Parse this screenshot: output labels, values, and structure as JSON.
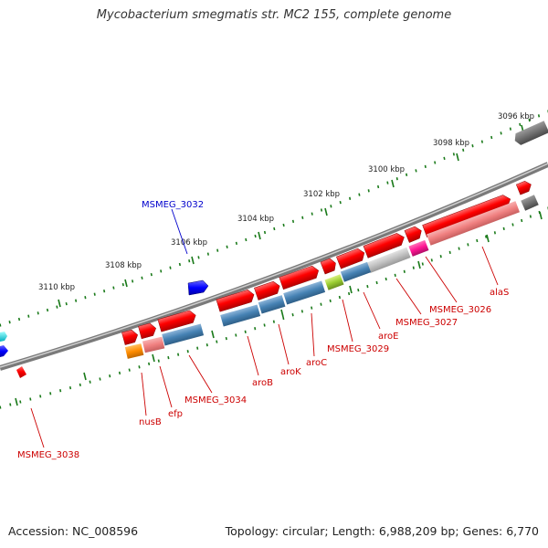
{
  "title": "Mycobacterium smegmatis str. MC2 155, complete genome",
  "footer": {
    "accession": "Accession: NC_008596",
    "summary": "Topology: circular; Length: 6,988,209 bp; Genes: 6,770"
  },
  "scale_labels": [
    "3096 kbp",
    "3098 kbp",
    "3100 kbp",
    "3102 kbp",
    "3104 kbp",
    "3106 kbp",
    "3108 kbp",
    "3110 kbp"
  ],
  "gene_labels": {
    "MSMEG_3032": "MSMEG_3032",
    "alaS": "alaS",
    "MSMEG_3026": "MSMEG_3026",
    "MSMEG_3027": "MSMEG_3027",
    "aroE": "aroE",
    "MSMEG_3029": "MSMEG_3029",
    "aroC": "aroC",
    "aroK": "aroK",
    "aroB": "aroB",
    "MSMEG_3034": "MSMEG_3034",
    "efp": "efp",
    "nusB": "nusB",
    "MSMEG_3038": "MSMEG_3038"
  },
  "colors": {
    "plus_strand": "#ff0000",
    "minus_strand": "#4682b4",
    "pink": "#f08080",
    "gray": "#c0c0c0",
    "magenta": "#ff1493",
    "lime": "#9acd32",
    "orange": "#ff8c00",
    "blue_gene": "#0000ff",
    "label_red": "#cc0000",
    "label_blue": "#0000cc",
    "tick_green": "#1a7a1a"
  }
}
